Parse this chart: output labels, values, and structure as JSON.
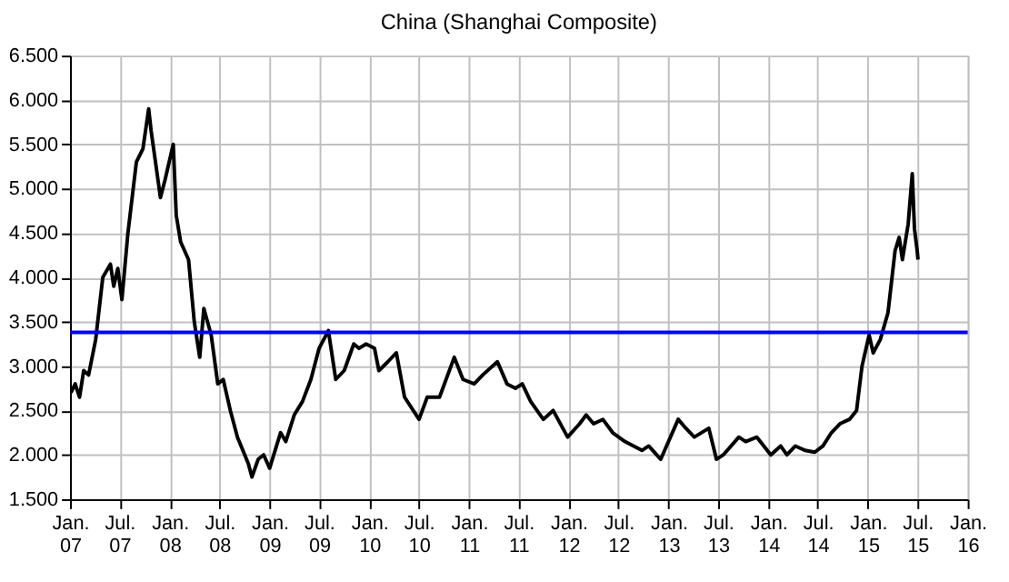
{
  "chart_data": {
    "type": "line",
    "title": "China (Shanghai Composite)",
    "xlim": [
      "2007-01-01",
      "2016-01-01"
    ],
    "xticks": [
      {
        "value": "2007-01-01",
        "label": "Jan. 07"
      },
      {
        "value": "2007-07-01",
        "label": "Jul. 07"
      },
      {
        "value": "2008-01-01",
        "label": "Jan. 08"
      },
      {
        "value": "2008-07-01",
        "label": "Jul. 08"
      },
      {
        "value": "2009-01-01",
        "label": "Jan. 09"
      },
      {
        "value": "2009-07-01",
        "label": "Jul. 09"
      },
      {
        "value": "2010-01-01",
        "label": "Jan. 10"
      },
      {
        "value": "2010-07-01",
        "label": "Jul. 10"
      },
      {
        "value": "2011-01-01",
        "label": "Jan. 11"
      },
      {
        "value": "2011-07-01",
        "label": "Jul. 11"
      },
      {
        "value": "2012-01-01",
        "label": "Jan. 12"
      },
      {
        "value": "2012-07-01",
        "label": "Jul. 12"
      },
      {
        "value": "2013-01-01",
        "label": "Jan. 13"
      },
      {
        "value": "2013-07-01",
        "label": "Jul. 13"
      },
      {
        "value": "2014-01-01",
        "label": "Jan. 14"
      },
      {
        "value": "2014-07-01",
        "label": "Jul. 14"
      },
      {
        "value": "2015-01-01",
        "label": "Jan. 15"
      },
      {
        "value": "2015-07-01",
        "label": "Jul. 15"
      },
      {
        "value": "2016-01-01",
        "label": "Jan. 16"
      }
    ],
    "ylim": [
      1500,
      6500
    ],
    "yticks": [
      {
        "value": 1500,
        "label": "1.500"
      },
      {
        "value": 2000,
        "label": "2.000"
      },
      {
        "value": 2500,
        "label": "2.500"
      },
      {
        "value": 3000,
        "label": "3.000"
      },
      {
        "value": 3500,
        "label": "3.500"
      },
      {
        "value": 4000,
        "label": "4.000"
      },
      {
        "value": 4500,
        "label": "4.500"
      },
      {
        "value": 5000,
        "label": "5.000"
      },
      {
        "value": 5500,
        "label": "5.500"
      },
      {
        "value": 6000,
        "label": "6.000"
      },
      {
        "value": 6500,
        "label": "6.500"
      }
    ],
    "grid": true,
    "ref_lines": [
      {
        "axis": "y",
        "value": 3380,
        "color": "#0000ff"
      }
    ],
    "series": [
      {
        "color": "#000000",
        "x": [
          "2007-01-04",
          "2007-01-20",
          "2007-02-05",
          "2007-02-20",
          "2007-03-10",
          "2007-04-05",
          "2007-05-01",
          "2007-05-29",
          "2007-06-10",
          "2007-06-25",
          "2007-07-10",
          "2007-08-01",
          "2007-09-01",
          "2007-09-25",
          "2007-10-16",
          "2007-10-25",
          "2007-11-10",
          "2007-11-28",
          "2007-12-15",
          "2008-01-14",
          "2008-01-25",
          "2008-02-10",
          "2008-03-10",
          "2008-03-31",
          "2008-04-20",
          "2008-05-05",
          "2008-06-01",
          "2008-06-25",
          "2008-07-15",
          "2008-08-10",
          "2008-09-05",
          "2008-09-25",
          "2008-10-15",
          "2008-10-28",
          "2008-11-20",
          "2008-12-10",
          "2009-01-01",
          "2009-02-10",
          "2009-03-01",
          "2009-04-01",
          "2009-05-01",
          "2009-06-01",
          "2009-07-01",
          "2009-08-04",
          "2009-08-31",
          "2009-10-01",
          "2009-11-05",
          "2009-11-24",
          "2009-12-20",
          "2010-01-20",
          "2010-02-05",
          "2010-03-10",
          "2010-04-10",
          "2010-05-10",
          "2010-07-02",
          "2010-08-01",
          "2010-09-15",
          "2010-11-08",
          "2010-12-10",
          "2011-01-20",
          "2011-02-20",
          "2011-04-15",
          "2011-05-20",
          "2011-06-20",
          "2011-07-15",
          "2011-08-15",
          "2011-09-30",
          "2011-11-05",
          "2011-12-28",
          "2012-02-10",
          "2012-03-05",
          "2012-04-01",
          "2012-05-05",
          "2012-06-10",
          "2012-07-25",
          "2012-09-25",
          "2012-10-20",
          "2012-12-03",
          "2013-02-05",
          "2013-03-05",
          "2013-04-05",
          "2013-05-28",
          "2013-06-25",
          "2013-07-20",
          "2013-09-15",
          "2013-10-10",
          "2013-11-20",
          "2014-01-10",
          "2014-02-15",
          "2014-03-10",
          "2014-04-10",
          "2014-05-15",
          "2014-06-20",
          "2014-07-20",
          "2014-08-20",
          "2014-09-20",
          "2014-10-25",
          "2014-11-20",
          "2014-12-10",
          "2015-01-05",
          "2015-01-20",
          "2015-02-15",
          "2015-03-15",
          "2015-04-10",
          "2015-04-25",
          "2015-05-07",
          "2015-05-28",
          "2015-06-12",
          "2015-06-20",
          "2015-06-30",
          "2015-07-03"
        ],
        "values": [
          2700,
          2800,
          2650,
          2950,
          2900,
          3300,
          4000,
          4150,
          3900,
          4100,
          3750,
          4500,
          5300,
          5450,
          5900,
          5650,
          5300,
          4900,
          5100,
          5500,
          4700,
          4400,
          4200,
          3500,
          3100,
          3650,
          3350,
          2800,
          2850,
          2500,
          2200,
          2050,
          1900,
          1750,
          1950,
          2000,
          1850,
          2250,
          2150,
          2450,
          2600,
          2850,
          3200,
          3400,
          2850,
          2950,
          3250,
          3200,
          3250,
          3200,
          2950,
          3050,
          3150,
          2650,
          2400,
          2650,
          2650,
          3100,
          2850,
          2800,
          2900,
          3050,
          2800,
          2750,
          2800,
          2600,
          2400,
          2500,
          2200,
          2350,
          2450,
          2350,
          2400,
          2250,
          2150,
          2050,
          2100,
          1950,
          2400,
          2300,
          2200,
          2300,
          1950,
          2000,
          2200,
          2150,
          2200,
          2000,
          2100,
          2000,
          2100,
          2050,
          2030,
          2100,
          2250,
          2350,
          2400,
          2500,
          3000,
          3350,
          3150,
          3300,
          3600,
          4300,
          4450,
          4200,
          4600,
          5170,
          4550,
          4300,
          4200
        ]
      }
    ]
  }
}
